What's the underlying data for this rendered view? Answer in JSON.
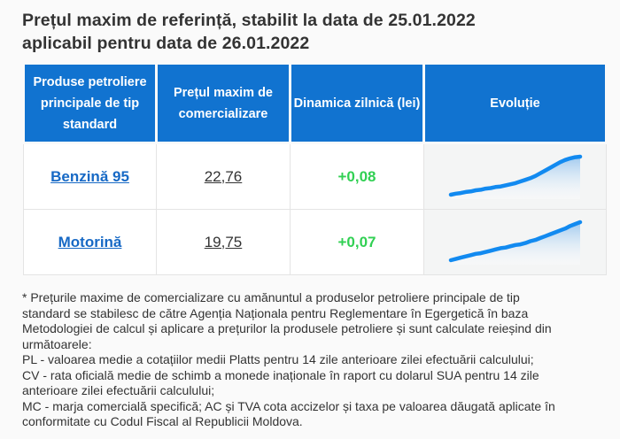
{
  "colors": {
    "header_bg": "#1173d0",
    "link_blue": "#1769c5",
    "positive_green": "#31d053",
    "border": "#e4e4e4",
    "evo_bg": "#f4f5f5",
    "page_bg": "#fafafa",
    "text": "#333333",
    "spark_line": "#128af0",
    "spark_fill_top": "#9cc7ee",
    "spark_fill_bottom": "#ffffff"
  },
  "title": {
    "lines": [
      "Prețul maxim de referință, stabilit la data de 25.01.2022",
      "aplicabil pentru data de 26.01.2022"
    ],
    "reference_date": "25.01.2022",
    "applicable_date": "26.01.2022"
  },
  "table": {
    "headers": [
      "Produse petroliere principale de tip standard",
      "Prețul maxim de comercializare",
      "Dinamica zilnică (lei)",
      "Evoluție"
    ],
    "rows": [
      {
        "product": "Benzină 95",
        "price": "22,76",
        "dynamic": "+0,08"
      },
      {
        "product": "Motorină",
        "price": "19,75",
        "dynamic": "+0,07"
      }
    ]
  },
  "chart_data": [
    {
      "type": "area",
      "name": "benzina-95-evolutie",
      "title": "",
      "xlabel": "",
      "ylabel": "",
      "axes_visible": false,
      "values": [
        10,
        12,
        13,
        15,
        16,
        18,
        19,
        21,
        22,
        24,
        25,
        27,
        29,
        31,
        34,
        37,
        40,
        44,
        49,
        54,
        59,
        64,
        69,
        73,
        76,
        78,
        79
      ]
    },
    {
      "type": "area",
      "name": "motorina-evolutie",
      "title": "",
      "xlabel": "",
      "ylabel": "",
      "axes_visible": false,
      "values": [
        8,
        10,
        12,
        14,
        16,
        18,
        19,
        21,
        23,
        25,
        27,
        28,
        30,
        32,
        33,
        35,
        38,
        40,
        43,
        46,
        49,
        52,
        55,
        58,
        62,
        65,
        68
      ]
    }
  ],
  "footnote": {
    "lines": [
      "* Prețurile maxime de comercializare cu amănuntul a produselor petroliere principale de tip",
      "standard se stabilesc de către Agenția Naționala pentru Reglementare în Egergetică în baza",
      "Metodologiei de calcul și aplicare a prețurilor la produsele petroliere și sunt calculate reieșind din",
      "următoarele:",
      "PL - valoarea medie a cotațiilor medii Platts pentru 14 zile anterioare zilei efectuării calculului;",
      "CV - rata oficială medie de schimb a monede inaționale în raport cu dolarul SUA pentru 14 zile",
      "anterioare zilei efectuării calculului;",
      "MC - marja comercială specifică; AC și TVA cota accizelor și taxa pe valoarea dăugată aplicate în",
      "conformitate cu Codul Fiscal al Republicii Moldova."
    ]
  }
}
